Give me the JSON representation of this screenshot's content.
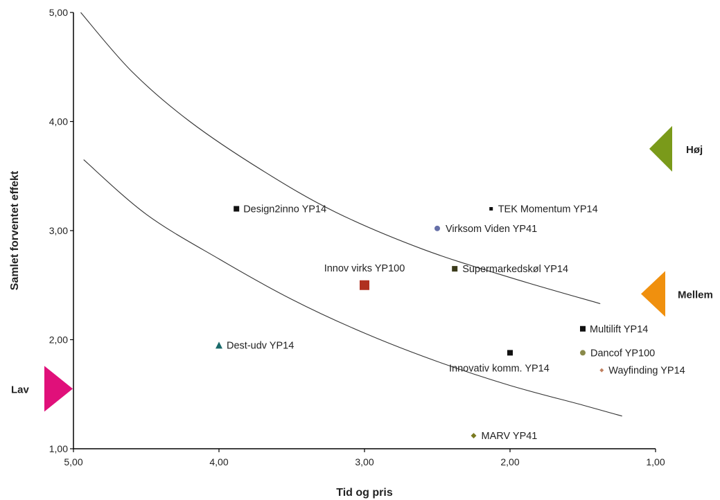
{
  "chart_data": {
    "type": "scatter",
    "xlabel": "Tid og pris",
    "ylabel": "Samlet forventet effekt",
    "xlim": [
      5,
      1
    ],
    "ylim": [
      1,
      5
    ],
    "x_reversed": true,
    "x_ticks": [
      "5,00",
      "4,00",
      "3,00",
      "2,00",
      "1,00"
    ],
    "y_ticks": [
      "1,00",
      "2,00",
      "3,00",
      "4,00",
      "5,00"
    ],
    "grid": false,
    "points": [
      {
        "label": "Design2inno YP14",
        "x": 3.88,
        "y": 3.2,
        "marker": "square",
        "color": "#111111",
        "size": 8
      },
      {
        "label": "TEK Momentum YP14",
        "x": 2.13,
        "y": 3.2,
        "marker": "square",
        "color": "#111111",
        "size": 5
      },
      {
        "label": "Virksom Viden YP41",
        "x": 2.5,
        "y": 3.02,
        "marker": "circle",
        "color": "#6670a8",
        "size": 8
      },
      {
        "label": "Innov virks YP100",
        "x": 3.0,
        "y": 2.5,
        "marker": "square",
        "color": "#b03020",
        "size": 14
      },
      {
        "label": "Supermarkedskøl YP14",
        "x": 2.38,
        "y": 2.65,
        "marker": "square",
        "color": "#3a3a1a",
        "size": 8
      },
      {
        "label": "Multilift YP14",
        "x": 1.5,
        "y": 2.1,
        "marker": "square",
        "color": "#111111",
        "size": 8
      },
      {
        "label": "Dest-udv YP14",
        "x": 4.0,
        "y": 1.95,
        "marker": "triangle",
        "color": "#1a6a6a",
        "size": 10
      },
      {
        "label": "Innovativ komm. YP14",
        "x": 2.0,
        "y": 1.88,
        "marker": "square",
        "color": "#111111",
        "size": 8
      },
      {
        "label": "Dancof YP100",
        "x": 1.5,
        "y": 1.88,
        "marker": "circle",
        "color": "#8a8a4a",
        "size": 8
      },
      {
        "label": "Wayfinding YP14",
        "x": 1.37,
        "y": 1.72,
        "marker": "diamond",
        "color": "#c08060",
        "size": 6
      },
      {
        "label": "MARV YP41",
        "x": 2.25,
        "y": 1.12,
        "marker": "diamond",
        "color": "#7a7a20",
        "size": 8
      }
    ],
    "curves": [
      {
        "points": [
          [
            4.95,
            5.0
          ],
          [
            4.6,
            4.46
          ],
          [
            4.2,
            4.0
          ],
          [
            3.7,
            3.55
          ],
          [
            3.2,
            3.17
          ],
          [
            2.6,
            2.83
          ],
          [
            2.0,
            2.57
          ],
          [
            1.38,
            2.33
          ]
        ]
      },
      {
        "points": [
          [
            4.93,
            3.65
          ],
          [
            4.5,
            3.15
          ],
          [
            4.0,
            2.74
          ],
          [
            3.5,
            2.37
          ],
          [
            3.0,
            2.06
          ],
          [
            2.5,
            1.8
          ],
          [
            2.0,
            1.58
          ],
          [
            1.5,
            1.4
          ],
          [
            1.23,
            1.3
          ]
        ]
      }
    ],
    "regions": [
      {
        "label": "Høj",
        "y": 3.75,
        "side": "right",
        "color": "#7a9a1a"
      },
      {
        "label": "Mellem",
        "y": 2.42,
        "side": "right",
        "color": "#f0900e"
      },
      {
        "label": "Lav",
        "y": 1.55,
        "side": "left",
        "color": "#e0107a"
      }
    ]
  }
}
